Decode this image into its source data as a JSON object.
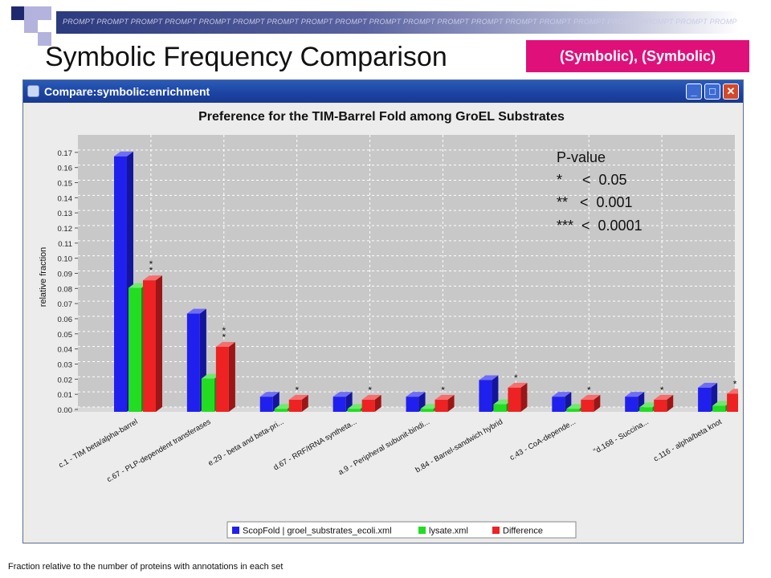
{
  "slide": {
    "prompt_band": "PROMPT PROMPT PROMPT PROMPT PROMPT PROMPT PROMPT PROMPT PROMPT PROMPT PROMPT PROMPT PROMPT PROMPT PROMPT PROMPT PROMPT PROMPT PROMPT PROMPT PROMPT PROMPT PROMPT PROMPT PROMPT PROMPT PROMPT PROMPT PROMPT PROMPT",
    "title": "Symbolic Frequency Comparison",
    "tag": "(Symbolic), (Symbolic)",
    "footnote": "Fraction relative to the number of proteins with annotations in each set",
    "colors": {
      "navy": "#1f2a6e",
      "lavender": "#b3b3dd",
      "tag": "#e0107a"
    }
  },
  "window": {
    "title": "Compare:symbolic:enrichment",
    "buttons": {
      "minimize": "_",
      "maximize": "□",
      "close": "✕"
    },
    "icons": {
      "app": "app-icon",
      "minimize": "minimize-icon",
      "maximize": "maximize-icon",
      "close": "close-icon"
    }
  },
  "annotation": {
    "heading": "P-value",
    "lines": [
      "*     <  0.05",
      "**   <  0.001",
      "***  <  0.0001"
    ]
  },
  "chart_data": {
    "type": "bar",
    "title": "Preference for the TIM-Barrel Fold among GroEL Substrates",
    "xlabel": "",
    "ylabel": "relative fraction",
    "ylim": [
      0,
      0.18
    ],
    "yticks": [
      "0.00",
      "0.01",
      "0.02",
      "0.03",
      "0.04",
      "0.05",
      "0.06",
      "0.07",
      "0.08",
      "0.09",
      "0.10",
      "0.11",
      "0.12",
      "0.13",
      "0.14",
      "0.15",
      "0.16",
      "0.17"
    ],
    "grid": true,
    "legend_position": "bottom",
    "categories": [
      "c.1 - TIM beta/alpha-barrel",
      "c.67 - PLP-dependent transferases",
      "e.29 - beta and beta-pri...",
      "d.67 - RRF/tRNA syntheta...",
      "a.9 - Peripheral subunit-bindi...",
      "b.84 - Barrel-sandwich hybrid",
      "c.43 - CoA-depende...",
      "\"d.168 - Succina...",
      "c.116 - alpha/beta knot"
    ],
    "series": [
      {
        "name": "ScopFold | groel_substrates_ecoli.xml",
        "color": "#2020ee",
        "values": [
          0.169,
          0.065,
          0.01,
          0.01,
          0.01,
          0.021,
          0.01,
          0.01,
          0.016
        ]
      },
      {
        "name": "lysate.xml",
        "color": "#22dd22",
        "values": [
          0.082,
          0.022,
          0.002,
          0.002,
          0.002,
          0.005,
          0.002,
          0.003,
          0.004
        ]
      },
      {
        "name": "Difference",
        "color": "#ee2222",
        "values": [
          0.087,
          0.043,
          0.008,
          0.008,
          0.008,
          0.016,
          0.008,
          0.008,
          0.012
        ]
      }
    ],
    "significance": [
      "**",
      "**",
      "*",
      "*",
      "*",
      "*",
      "*",
      "*",
      "*"
    ]
  }
}
